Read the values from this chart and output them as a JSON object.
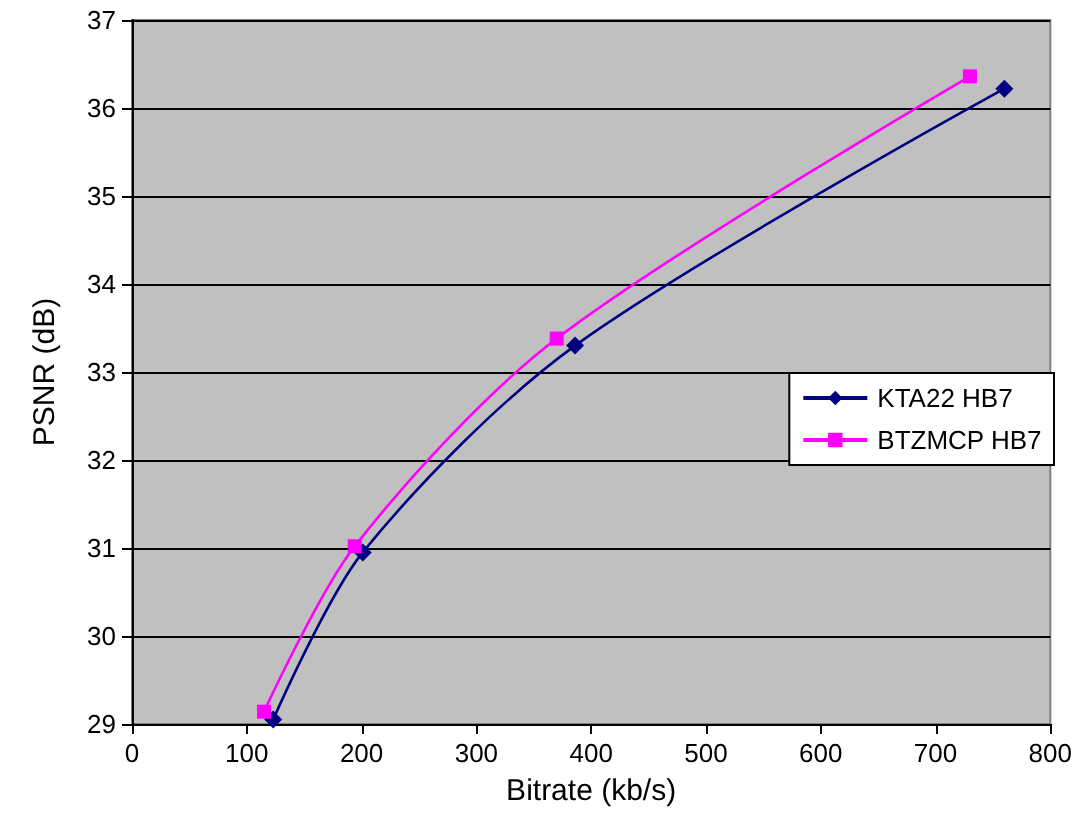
{
  "chart_data": {
    "type": "line",
    "xlabel": "Bitrate (kb/s)",
    "ylabel": "PSNR (dB)",
    "xlim": [
      0,
      800
    ],
    "xticks": [
      0,
      100,
      200,
      300,
      400,
      500,
      600,
      700,
      800
    ],
    "ylim": [
      29,
      37
    ],
    "yticks": [
      29,
      30,
      31,
      32,
      33,
      34,
      35,
      36,
      37
    ],
    "grid": "y",
    "legend": "right",
    "series": [
      {
        "name": "KTA22 HB7",
        "color": "#000080",
        "marker": "diamond",
        "x": [
          123,
          201,
          386,
          760
        ],
        "values": [
          29.05,
          30.95,
          33.3,
          36.22
        ]
      },
      {
        "name": "BTZMCP HB7",
        "color": "#ff00ff",
        "marker": "square",
        "x": [
          115,
          194,
          370,
          730
        ],
        "values": [
          29.14,
          31.02,
          33.38,
          36.36
        ]
      }
    ]
  }
}
